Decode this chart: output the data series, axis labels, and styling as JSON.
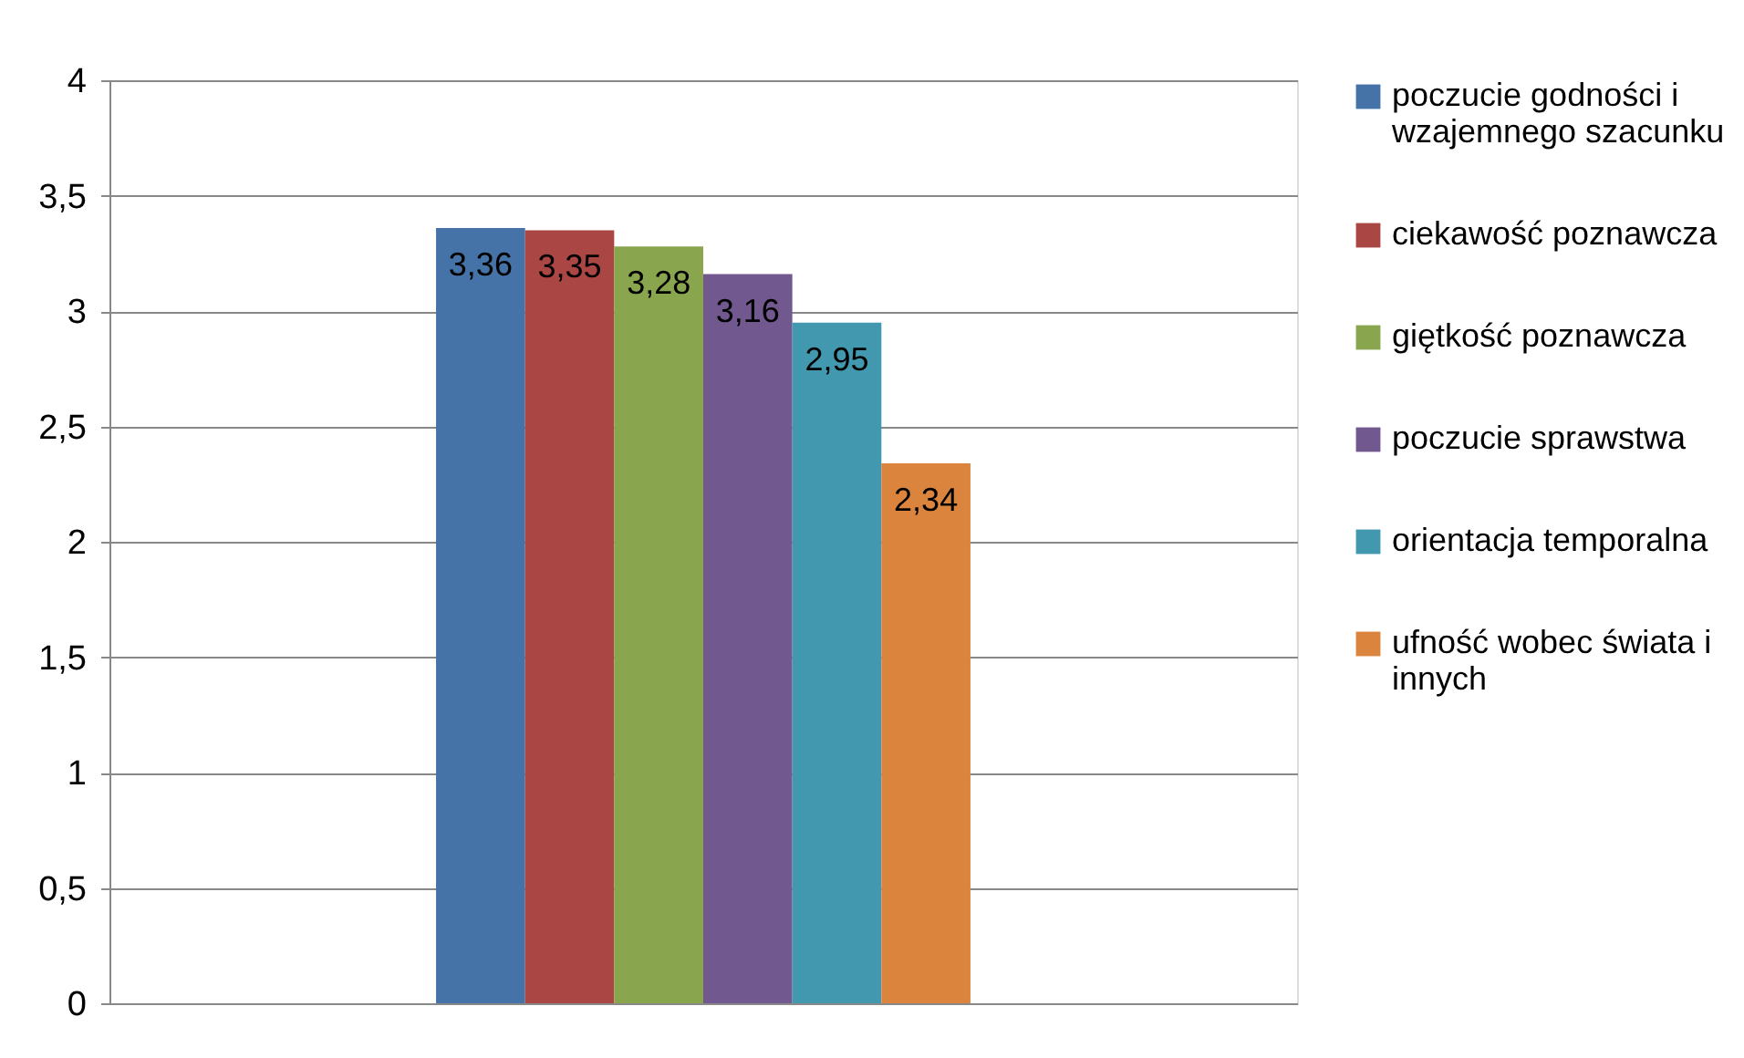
{
  "chart_data": {
    "type": "bar",
    "categories": [
      null
    ],
    "series": [
      {
        "name": "poczucie godności i wzajemnego szacunku",
        "color": "#4572a7",
        "values": [
          3.36
        ],
        "value_labels": [
          "3,36"
        ]
      },
      {
        "name": "ciekawość poznawcza",
        "color": "#aa4643",
        "values": [
          3.35
        ],
        "value_labels": [
          "3,35"
        ]
      },
      {
        "name": "giętkość poznawcza",
        "color": "#89a54e",
        "values": [
          3.28
        ],
        "value_labels": [
          "3,28"
        ]
      },
      {
        "name": "poczucie sprawstwa",
        "color": "#71588f",
        "values": [
          3.16
        ],
        "value_labels": [
          "3,16"
        ]
      },
      {
        "name": "orientacja temporalna",
        "color": "#4198af",
        "values": [
          2.95
        ],
        "value_labels": [
          "2,95"
        ]
      },
      {
        "name": "ufność wobec świata i innych",
        "color": "#db843d",
        "values": [
          2.34
        ],
        "value_labels": [
          "2,34"
        ]
      }
    ],
    "ylim": [
      0,
      4
    ],
    "yticks": [
      0,
      {
        "value": 0.5,
        "label": "0,5"
      },
      1,
      {
        "value": 1.5,
        "label": "1,5"
      },
      2,
      {
        "value": 2.5,
        "label": "2,5"
      },
      3,
      {
        "value": 3.5,
        "label": "3,5"
      },
      4
    ],
    "grid": "y",
    "legend": "right"
  }
}
